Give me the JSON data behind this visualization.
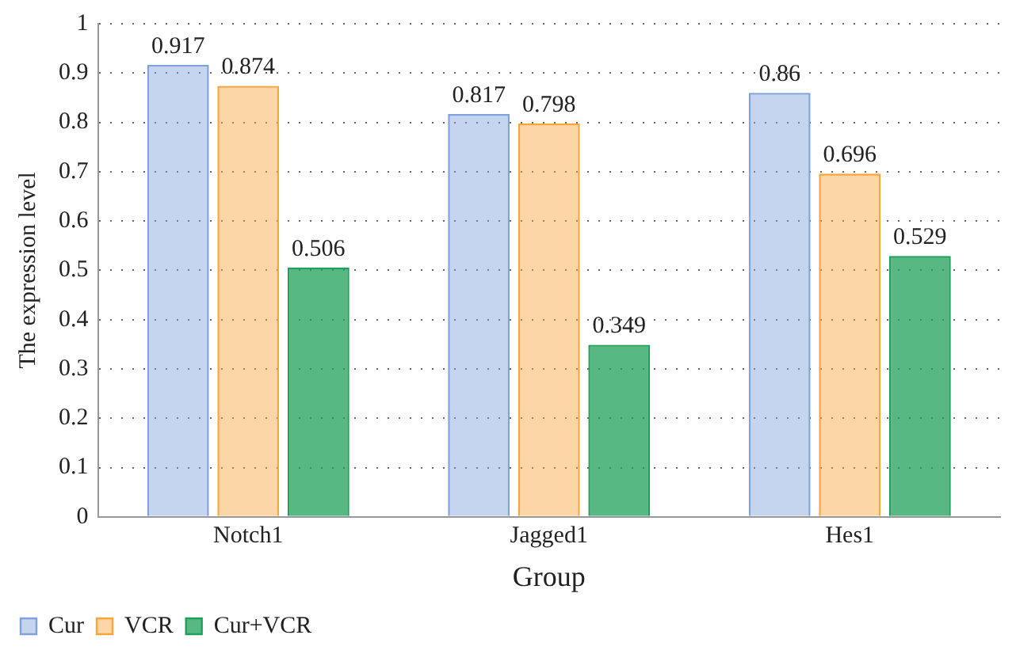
{
  "chart_data": {
    "type": "bar",
    "xlabel": "Group",
    "ylabel": "The expression level",
    "categories": [
      "Notch1",
      "Jagged1",
      "Hes1"
    ],
    "series": [
      {
        "name": "Cur",
        "color": "#7fa1dc",
        "values": [
          0.917,
          0.817,
          0.86
        ]
      },
      {
        "name": "VCR",
        "color": "#f9a53a",
        "values": [
          0.874,
          0.798,
          0.696
        ]
      },
      {
        "name": "Cur+VCR",
        "color": "#1fa05a",
        "values": [
          0.506,
          0.349,
          0.529
        ]
      }
    ],
    "ylim": [
      0,
      1
    ],
    "yticks": [
      0,
      0.1,
      0.2,
      0.3,
      0.4,
      0.5,
      0.6,
      0.7,
      0.8,
      0.9,
      1
    ],
    "grid": "y",
    "legend": "bottom left",
    "data_labels": true
  }
}
